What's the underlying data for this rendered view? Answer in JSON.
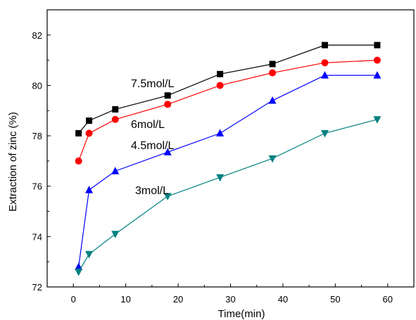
{
  "chart_data": {
    "type": "line",
    "xlabel": "Time(min)",
    "ylabel": "Extraction of zinc (%)",
    "xlim": [
      -5,
      65
    ],
    "ylim": [
      72,
      83
    ],
    "xticks": [
      0,
      10,
      20,
      30,
      40,
      50,
      60
    ],
    "yticks": [
      72,
      74,
      76,
      78,
      80,
      82
    ],
    "grid": false,
    "legend": "none",
    "x": [
      1,
      3,
      8,
      18,
      28,
      38,
      48,
      58
    ],
    "series": [
      {
        "name": "7.5mol/L",
        "color": "#000000",
        "marker": "square",
        "values": [
          78.1,
          78.6,
          79.05,
          79.6,
          80.45,
          80.85,
          81.6,
          81.6
        ]
      },
      {
        "name": "6mol/L",
        "color": "#ff0000",
        "marker": "circle",
        "values": [
          77.0,
          78.1,
          78.65,
          79.25,
          80.0,
          80.5,
          80.9,
          81.0
        ]
      },
      {
        "name": "4.5mol/L",
        "color": "#0000ff",
        "marker": "triangle-up",
        "values": [
          72.8,
          75.85,
          76.6,
          77.35,
          78.1,
          79.4,
          80.4,
          80.4
        ]
      },
      {
        "name": "3mol/L",
        "color": "#008080",
        "marker": "triangle-down",
        "values": [
          72.6,
          73.3,
          74.1,
          75.6,
          76.35,
          77.1,
          78.1,
          78.65
        ]
      }
    ]
  }
}
